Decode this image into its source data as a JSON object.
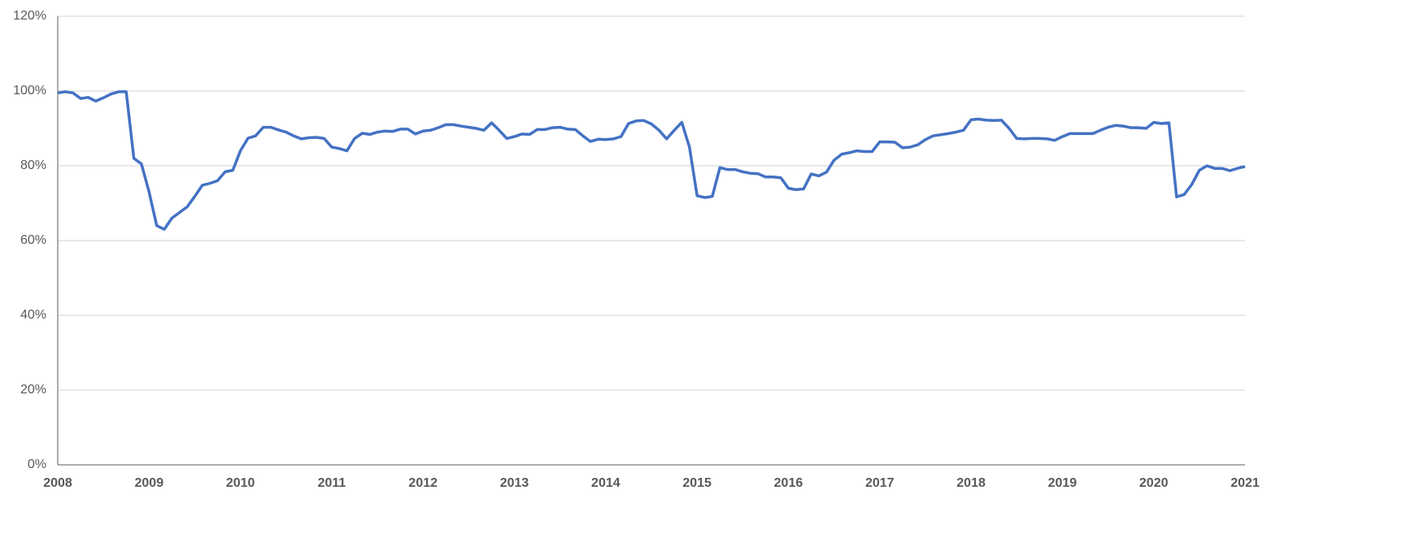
{
  "chart_data": {
    "type": "line",
    "categories": [
      "2008",
      null,
      null,
      null,
      null,
      null,
      null,
      null,
      null,
      null,
      null,
      null,
      "2009",
      null,
      null,
      null,
      null,
      null,
      null,
      null,
      null,
      null,
      null,
      null,
      "2010",
      null,
      null,
      null,
      null,
      null,
      null,
      null,
      null,
      null,
      null,
      null,
      "2011",
      null,
      null,
      null,
      null,
      null,
      null,
      null,
      null,
      null,
      null,
      null,
      "2012",
      null,
      null,
      null,
      null,
      null,
      null,
      null,
      null,
      null,
      null,
      null,
      "2013",
      null,
      null,
      null,
      null,
      null,
      null,
      null,
      null,
      null,
      null,
      null,
      "2014",
      null,
      null,
      null,
      null,
      null,
      null,
      null,
      null,
      null,
      null,
      null,
      "2015",
      null,
      null,
      null,
      null,
      null,
      null,
      null,
      null,
      null,
      null,
      null,
      "2016",
      null,
      null,
      null,
      null,
      null,
      null,
      null,
      null,
      null,
      null,
      null,
      "2017",
      null,
      null,
      null,
      null,
      null,
      null,
      null,
      null,
      null,
      null,
      null,
      "2018",
      null,
      null,
      null,
      null,
      null,
      null,
      null,
      null,
      null,
      null,
      null,
      "2019",
      null,
      null,
      null,
      null,
      null,
      null,
      null,
      null,
      null,
      null,
      null,
      "2020",
      null,
      null,
      null,
      null,
      null,
      null,
      null,
      null,
      null,
      null,
      null,
      "2021"
    ],
    "series": [
      {
        "color": "#4472c4",
        "values": [
          99.5,
          99.8,
          99.5,
          98,
          98.3,
          97.3,
          98.2,
          99.2,
          99.8,
          99.8,
          82,
          80.5,
          73,
          64,
          63,
          66,
          67.5,
          69,
          71.8,
          74.8,
          75.3,
          76,
          78.4,
          78.8,
          84,
          87.4,
          88,
          90.3,
          90.3,
          89.6,
          89,
          88,
          87.2,
          87.5,
          87.6,
          87.3,
          85,
          84.6,
          84,
          87.3,
          88.7,
          88.4,
          89,
          89.3,
          89.2,
          89.8,
          89.8,
          88.5,
          89.3,
          89.5,
          90.2,
          91,
          91,
          90.6,
          90.3,
          90,
          89.5,
          91.5,
          89.5,
          87.3,
          87.8,
          88.5,
          88.4,
          89.7,
          89.7,
          90.2,
          90.3,
          89.8,
          89.7,
          88,
          86.5,
          87.1,
          87,
          87.2,
          87.8,
          91.3,
          92,
          92.1,
          91.2,
          89.5,
          87.2,
          89.5,
          91.6,
          85,
          72,
          71.5,
          71.8,
          79.5,
          79,
          79,
          78.4,
          78,
          77.9,
          77,
          77,
          76.8,
          74,
          73.6,
          73.8,
          77.8,
          77.3,
          78.3,
          81.5,
          83.1,
          83.5,
          84,
          83.8,
          83.8,
          86.4,
          86.4,
          86.3,
          84.8,
          85,
          85.6,
          87,
          88,
          88.3,
          88.6,
          89,
          89.5,
          92.3,
          92.5,
          92.2,
          92.1,
          92.2,
          90,
          87.3,
          87.2,
          87.3,
          87.3,
          87.2,
          86.8,
          87.8,
          88.6,
          88.6,
          88.6,
          88.6,
          89.5,
          90.3,
          90.8,
          90.6,
          90.2,
          90.2,
          90,
          91.6,
          91.3,
          91.5,
          71.7,
          72.3,
          75,
          78.8,
          80,
          79.3,
          79.3,
          78.7,
          79.3,
          79.8
        ]
      }
    ],
    "ylim": [
      0,
      120
    ],
    "yticks": [
      {
        "value": 0,
        "label": "0%"
      },
      {
        "value": 20,
        "label": "20%"
      },
      {
        "value": 40,
        "label": "40%"
      },
      {
        "value": 60,
        "label": "60%"
      },
      {
        "value": 80,
        "label": "80%"
      },
      {
        "value": 100,
        "label": "100%"
      },
      {
        "value": 120,
        "label": "120%"
      }
    ],
    "grid": true
  }
}
